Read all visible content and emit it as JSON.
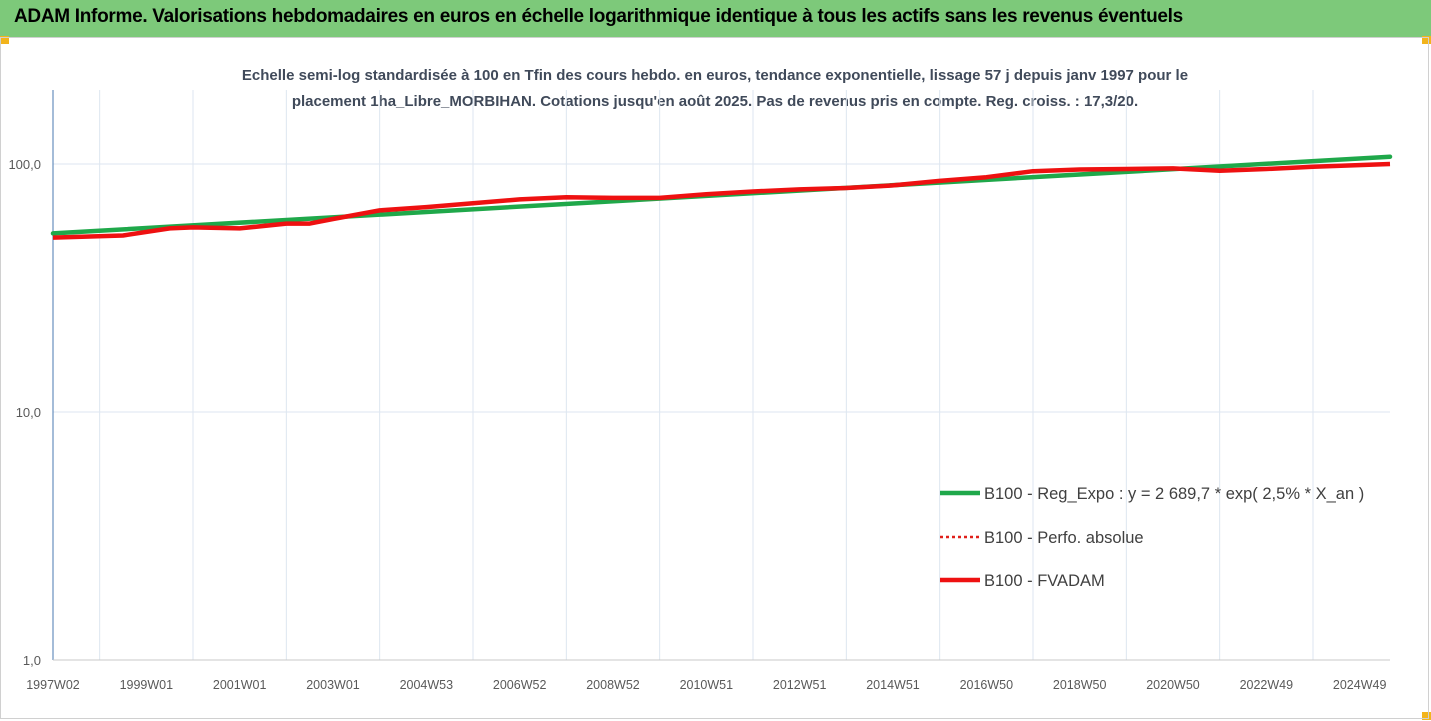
{
  "header": {
    "title": "ADAM Informe. Valorisations hebdomadaires en euros en échelle logarithmique identique à tous les actifs sans les revenus éventuels"
  },
  "colors": {
    "header_bg": "#7dc97a",
    "corner_accent": "#f2b41c",
    "regression": "#1fa84a",
    "perf_absolue": "#e0201a",
    "fvadam": "#ee1111",
    "grid": "#dde6f0",
    "axis": "#4a7ab0"
  },
  "chart_data": {
    "type": "line",
    "subtitle_line1": "Echelle semi-log standardisée à 100 en Tfin des cours hebdo. en euros, tendance exponentielle, lissage 57 j depuis janv 1997 pour le",
    "subtitle_line2": "placement 1ha_Libre_MORBIHAN.  Cotations jusqu'en août 2025. Pas de revenus pris en compte. Reg. croiss. : 17,3/20.",
    "y_scale": "log",
    "ylim": [
      1,
      200
    ],
    "xlim": [
      1997.0,
      2025.65
    ],
    "y_ticks": [
      {
        "value": 1,
        "label": "1,0"
      },
      {
        "value": 10,
        "label": "10,0"
      },
      {
        "value": 100,
        "label": "100,0"
      }
    ],
    "x_ticks": [
      {
        "value": 1997.0,
        "label": "1997W02"
      },
      {
        "value": 1999.0,
        "label": "1999W01"
      },
      {
        "value": 2001.0,
        "label": "2001W01"
      },
      {
        "value": 2003.0,
        "label": "2003W01"
      },
      {
        "value": 2005.0,
        "label": "2004W53"
      },
      {
        "value": 2007.0,
        "label": "2006W52"
      },
      {
        "value": 2009.0,
        "label": "2008W52"
      },
      {
        "value": 2011.0,
        "label": "2010W51"
      },
      {
        "value": 2013.0,
        "label": "2012W51"
      },
      {
        "value": 2015.0,
        "label": "2014W51"
      },
      {
        "value": 2017.0,
        "label": "2016W50"
      },
      {
        "value": 2019.0,
        "label": "2018W50"
      },
      {
        "value": 2021.0,
        "label": "2020W50"
      },
      {
        "value": 2023.0,
        "label": "2022W49"
      },
      {
        "value": 2025.0,
        "label": "2024W49"
      }
    ],
    "grid": "vertical",
    "legend_position": "bottom-right",
    "series": [
      {
        "name": "B100 - Reg_Expo : y = 2 689,7 * exp( 2,5% *  X_an )",
        "style": "solid",
        "x": [
          1997.0,
          2025.65
        ],
        "y": [
          52.5,
          107.0
        ]
      },
      {
        "name": "B100 - Perfo. absolue",
        "style": "dotted",
        "x": [
          1997.0,
          1998.5,
          1999.5,
          2000.0,
          2001.0,
          2002.0,
          2002.5,
          2003.0,
          2004.0,
          2005.0,
          2006.0,
          2007.0,
          2008.0,
          2009.0,
          2010.0,
          2011.0,
          2012.0,
          2013.0,
          2014.0,
          2015.0,
          2016.0,
          2017.0,
          2018.0,
          2019.0,
          2020.0,
          2021.0,
          2022.0,
          2023.0,
          2024.0,
          2025.65
        ],
        "y": [
          50.5,
          51.5,
          55.0,
          55.5,
          55.0,
          57.5,
          57.5,
          60.0,
          65.0,
          67.0,
          69.5,
          72.0,
          73.5,
          73.0,
          73.0,
          75.5,
          77.5,
          79.0,
          80.0,
          82.0,
          85.5,
          88.5,
          93.5,
          95.0,
          95.5,
          96.0,
          94.0,
          95.5,
          97.5,
          100.0
        ]
      },
      {
        "name": "B100 - FVADAM",
        "style": "solid",
        "x": [
          1997.0,
          1998.5,
          1999.5,
          2000.0,
          2001.0,
          2002.0,
          2002.5,
          2003.0,
          2004.0,
          2005.0,
          2006.0,
          2007.0,
          2008.0,
          2009.0,
          2010.0,
          2011.0,
          2012.0,
          2013.0,
          2014.0,
          2015.0,
          2016.0,
          2017.0,
          2018.0,
          2019.0,
          2020.0,
          2021.0,
          2022.0,
          2023.0,
          2024.0,
          2025.65
        ],
        "y": [
          50.5,
          51.5,
          55.0,
          55.5,
          55.0,
          57.5,
          57.5,
          60.0,
          65.0,
          67.0,
          69.5,
          72.0,
          73.5,
          73.0,
          73.0,
          75.5,
          77.5,
          79.0,
          80.0,
          82.0,
          85.5,
          88.5,
          93.5,
          95.0,
          95.5,
          96.0,
          94.0,
          95.5,
          97.5,
          100.0
        ]
      }
    ]
  }
}
